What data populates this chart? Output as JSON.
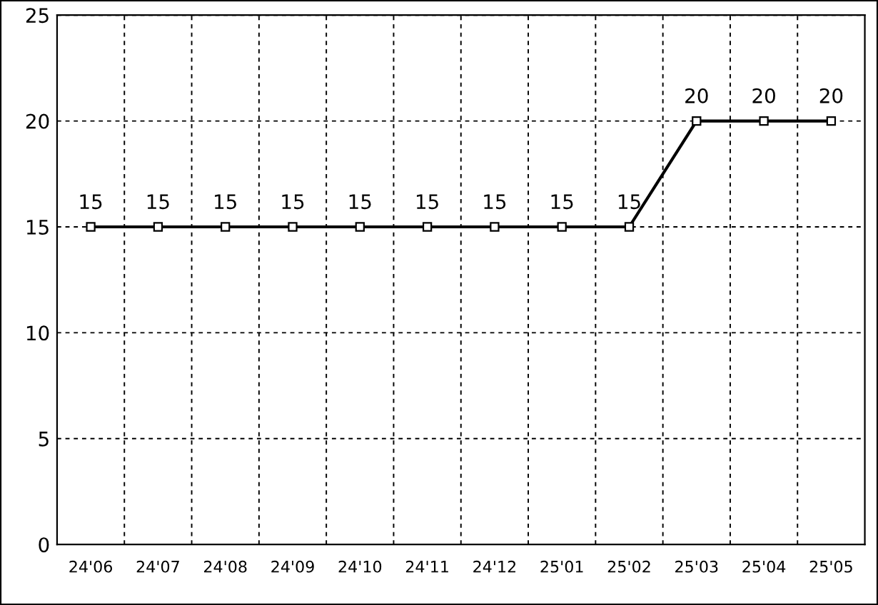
{
  "chart_data": {
    "type": "line",
    "categories": [
      "24'06",
      "24'07",
      "24'08",
      "24'09",
      "24'10",
      "24'11",
      "24'12",
      "25'01",
      "25'02",
      "25'03",
      "25'04",
      "25'05"
    ],
    "series": [
      {
        "color": "#000000",
        "values": [
          15,
          15,
          15,
          15,
          15,
          15,
          15,
          15,
          15,
          20,
          20,
          20
        ]
      }
    ],
    "ylim": [
      0,
      25
    ],
    "yticks": [
      0,
      5,
      10,
      15,
      20,
      25
    ],
    "grid": true,
    "marker": "square",
    "line_style": "solid",
    "data_labels": true
  }
}
